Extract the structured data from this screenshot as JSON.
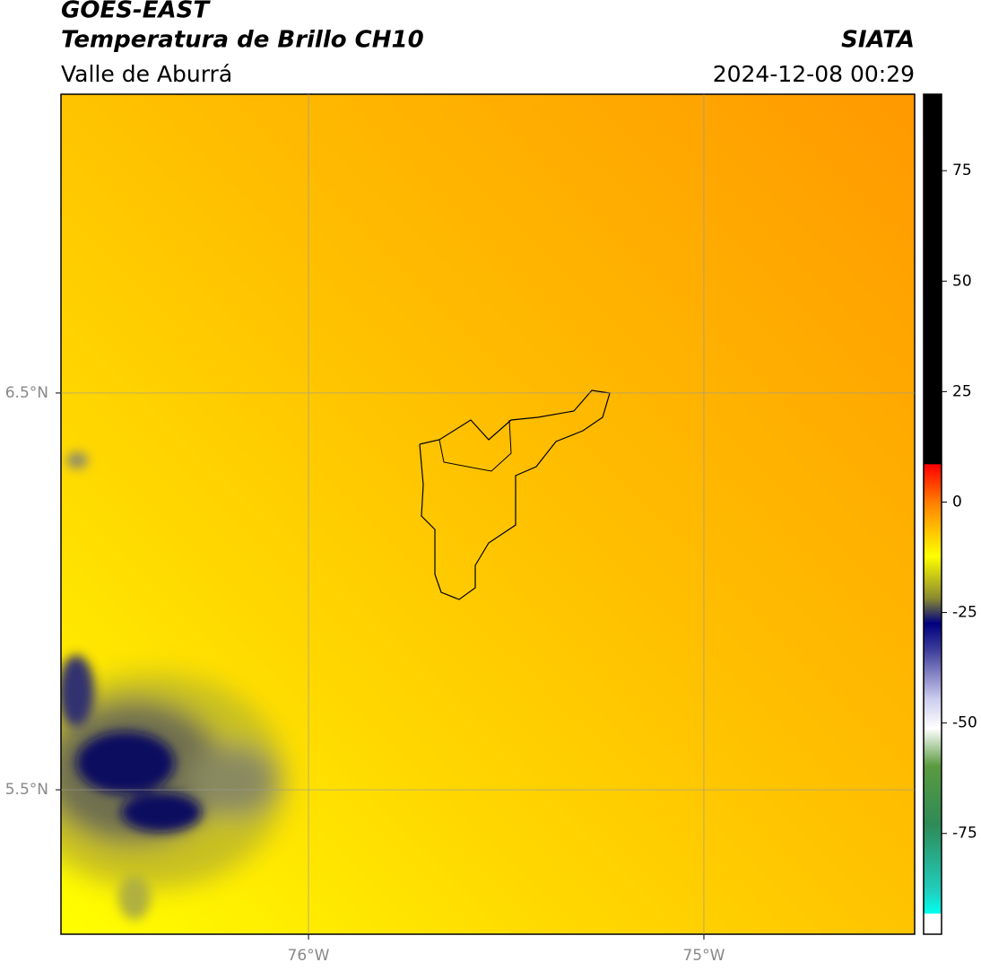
{
  "map": {
    "header": {
      "title": "GOES-EAST",
      "product": "Temperatura de Brillo CH10",
      "region": "Valle de Aburrá",
      "agency": "SIATA",
      "datetime": "2024-12-08 00:29"
    },
    "xlim": [
      -76.626,
      -74.467
    ],
    "xticks": [
      {
        "value": -76,
        "label": "76°W"
      },
      {
        "value": -75,
        "label": "75°W"
      }
    ],
    "ylim": [
      5.136,
      7.253
    ],
    "yticks": [
      {
        "value": 5.5,
        "label": "5.5°N"
      },
      {
        "value": 6.5,
        "label": "6.5°N"
      }
    ],
    "grid": true,
    "colorbar": {
      "lim": [
        -97.8,
        92.3
      ],
      "ticks": [
        -75,
        -50,
        -25,
        0,
        25,
        50,
        75
      ]
    }
  }
}
